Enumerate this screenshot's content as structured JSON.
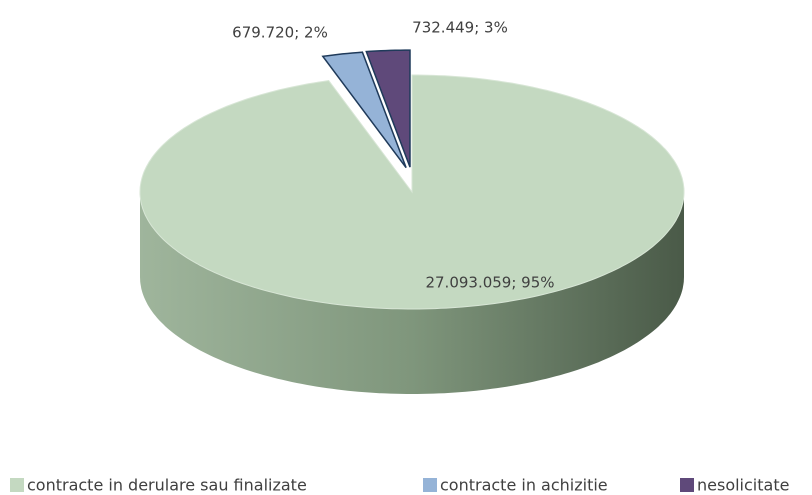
{
  "chart_data": {
    "type": "pie",
    "categories": [
      "contracte in derulare sau finalizate",
      "contracte in achizitie",
      "nesolicitate"
    ],
    "values": [
      27093059,
      679720,
      732449
    ],
    "value_labels": [
      "27.093.059; 95%",
      "679.720; 2%",
      "732.449; 3%"
    ],
    "colors": [
      "#c4d9c1",
      "#95b3d7",
      "#5f497a"
    ],
    "legend": "bottom"
  }
}
